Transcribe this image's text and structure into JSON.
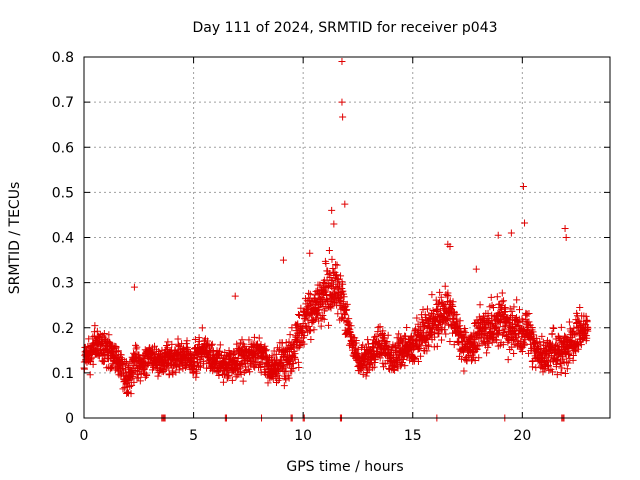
{
  "chart_data": {
    "type": "scatter",
    "title": "Day 111 of 2024, SRMTID for receiver p043",
    "xlabel": "GPS time / hours",
    "ylabel": "SRMTID / TECUs",
    "xlim": [
      0,
      24
    ],
    "ylim": [
      0,
      0.8
    ],
    "xticks": [
      0,
      5,
      10,
      15,
      20
    ],
    "xtick_labels": [
      "0",
      "5",
      "10",
      "15",
      "20"
    ],
    "yticks": [
      0,
      0.1,
      0.2,
      0.3,
      0.4,
      0.5,
      0.6,
      0.7,
      0.8
    ],
    "ytick_labels": [
      "0",
      "0.1",
      "0.2",
      "0.3",
      "0.4",
      "0.5",
      "0.6",
      "0.7",
      "0.8"
    ],
    "grid": true,
    "marker": "plus",
    "series_color": "#e00000",
    "profile_hours": [
      0,
      0.5,
      1,
      1.5,
      2,
      2.3,
      2.6,
      3,
      3.5,
      4,
      4.5,
      5,
      5.5,
      6,
      6.5,
      7,
      7.5,
      8,
      8.5,
      9,
      9.5,
      10,
      10.5,
      11,
      11.5,
      12,
      12.5,
      13,
      13.5,
      14,
      14.5,
      15,
      15.5,
      16,
      16.5,
      17,
      17.5,
      18,
      18.5,
      19,
      19.5,
      20,
      20.5,
      21,
      21.5,
      22,
      22.5,
      23
    ],
    "profile_mean": [
      0.13,
      0.16,
      0.15,
      0.13,
      0.08,
      0.13,
      0.11,
      0.14,
      0.12,
      0.13,
      0.14,
      0.13,
      0.15,
      0.13,
      0.12,
      0.13,
      0.14,
      0.14,
      0.11,
      0.12,
      0.14,
      0.21,
      0.24,
      0.27,
      0.3,
      0.2,
      0.13,
      0.13,
      0.17,
      0.13,
      0.15,
      0.16,
      0.19,
      0.21,
      0.24,
      0.2,
      0.14,
      0.19,
      0.2,
      0.22,
      0.19,
      0.2,
      0.17,
      0.13,
      0.15,
      0.14,
      0.19,
      0.2
    ],
    "profile_spread": [
      0.04,
      0.05,
      0.05,
      0.04,
      0.05,
      0.06,
      0.04,
      0.04,
      0.04,
      0.05,
      0.04,
      0.05,
      0.05,
      0.04,
      0.05,
      0.05,
      0.05,
      0.05,
      0.05,
      0.07,
      0.06,
      0.08,
      0.07,
      0.08,
      0.08,
      0.06,
      0.04,
      0.05,
      0.05,
      0.04,
      0.05,
      0.05,
      0.07,
      0.07,
      0.07,
      0.06,
      0.05,
      0.06,
      0.07,
      0.07,
      0.07,
      0.07,
      0.06,
      0.05,
      0.05,
      0.07,
      0.05,
      0.04
    ],
    "sample_count": 2600,
    "outliers": [
      {
        "x": 11.77,
        "y": 0.79
      },
      {
        "x": 11.77,
        "y": 0.7
      },
      {
        "x": 11.8,
        "y": 0.667
      },
      {
        "x": 20.05,
        "y": 0.513
      },
      {
        "x": 20.1,
        "y": 0.432
      },
      {
        "x": 11.9,
        "y": 0.474
      },
      {
        "x": 11.3,
        "y": 0.46
      },
      {
        "x": 11.4,
        "y": 0.43
      },
      {
        "x": 9.1,
        "y": 0.35
      },
      {
        "x": 10.3,
        "y": 0.365
      },
      {
        "x": 16.6,
        "y": 0.385
      },
      {
        "x": 16.7,
        "y": 0.38
      },
      {
        "x": 18.9,
        "y": 0.405
      },
      {
        "x": 19.5,
        "y": 0.41
      },
      {
        "x": 21.95,
        "y": 0.42
      },
      {
        "x": 22.0,
        "y": 0.4
      },
      {
        "x": 2.3,
        "y": 0.29
      },
      {
        "x": 6.9,
        "y": 0.27
      },
      {
        "x": 17.9,
        "y": 0.33
      }
    ],
    "zero_points": [
      3.55,
      3.6,
      3.65,
      3.7,
      6.45,
      6.5,
      8.1,
      9.45,
      9.5,
      10.0,
      10.05,
      11.7,
      11.75,
      16.1,
      19.2,
      21.8,
      21.85,
      21.9
    ]
  }
}
